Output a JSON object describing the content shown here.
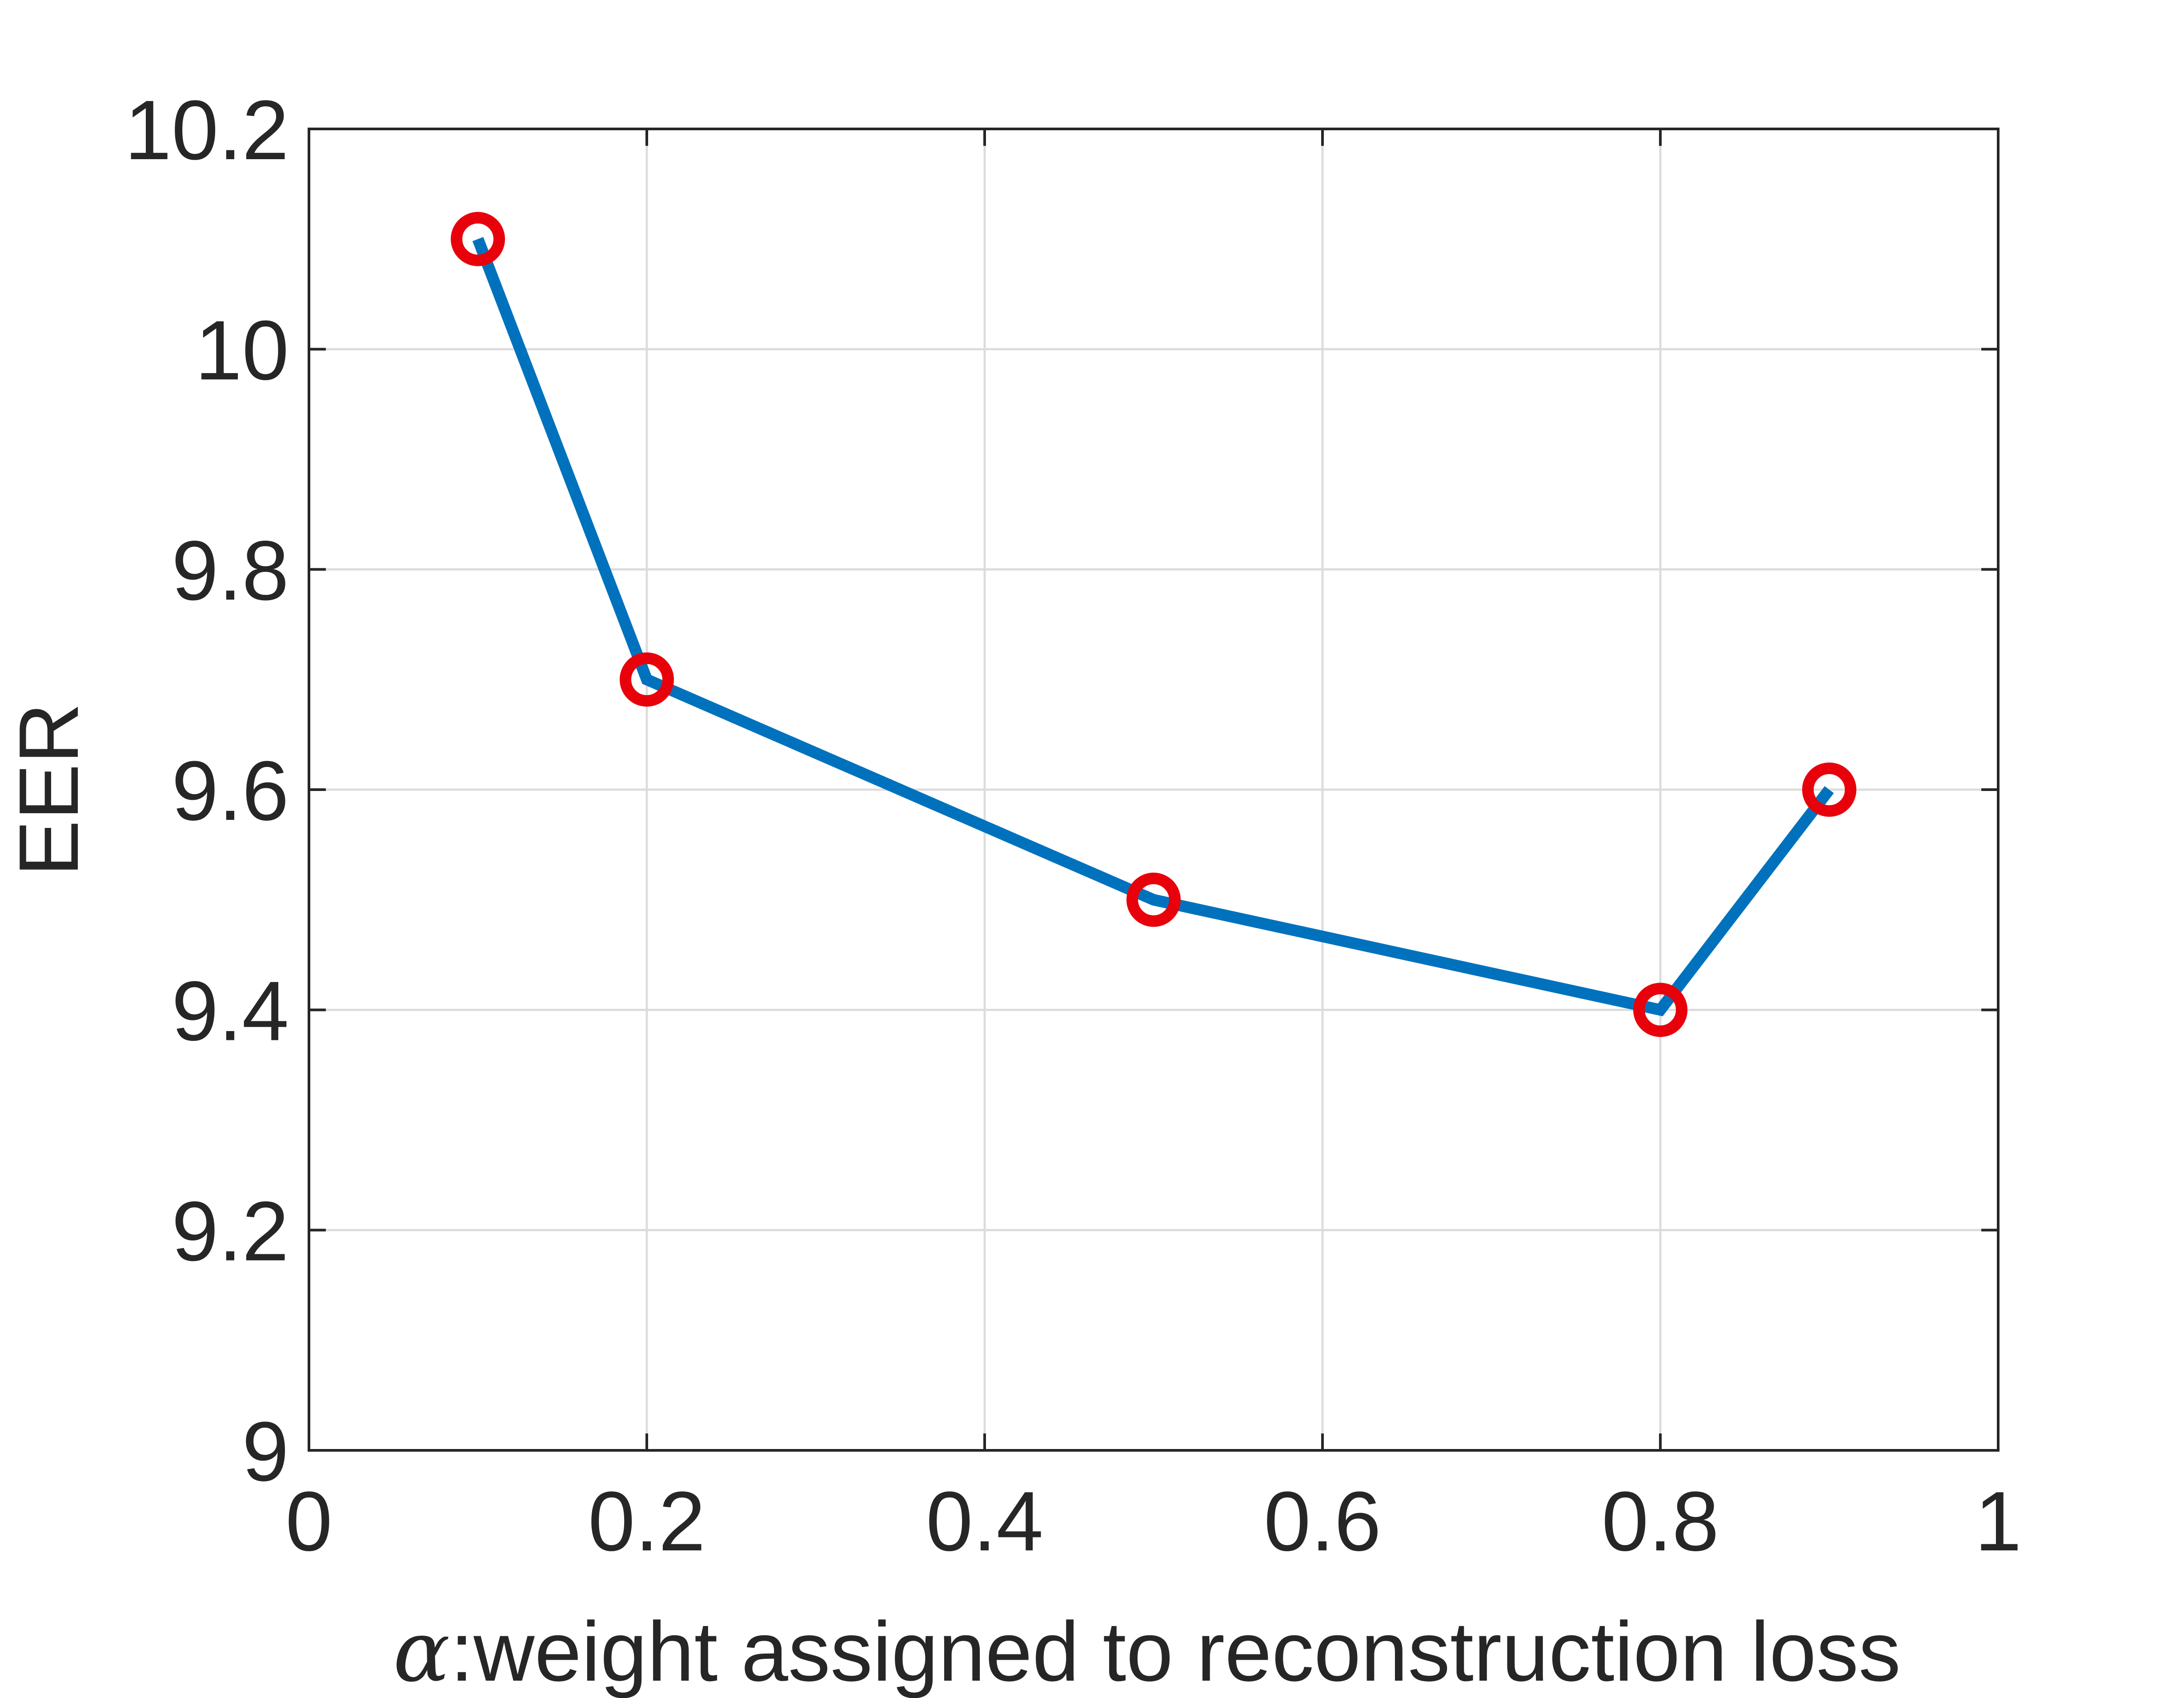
{
  "chart_data": {
    "type": "line",
    "title": "",
    "xlabel_symbol": "α",
    "xlabel_text": ":weight assigned to reconstruction loss",
    "ylabel": "EER",
    "xlim": [
      0,
      1
    ],
    "ylim": [
      9,
      10.2
    ],
    "x_ticks": [
      0,
      0.2,
      0.4,
      0.6,
      0.8,
      1
    ],
    "x_tick_labels": [
      "0",
      "0.2",
      "0.4",
      "0.6",
      "0.8",
      "1"
    ],
    "y_ticks": [
      9,
      9.2,
      9.4,
      9.6,
      9.8,
      10,
      10.2
    ],
    "y_tick_labels": [
      "9",
      "9.2",
      "9.4",
      "9.6",
      "9.8",
      "10",
      "10.2"
    ],
    "grid": true,
    "legend": "none",
    "series": [
      {
        "x": [
          0.1,
          0.2,
          0.5,
          0.8,
          0.9
        ],
        "y": [
          10.1,
          9.7,
          9.5,
          9.4,
          9.6
        ],
        "line_color": "#0072BD",
        "marker": "circle",
        "marker_color": "#E8000B"
      }
    ],
    "colors": {
      "grid": "#DCDCDC",
      "axes": "#262626"
    }
  }
}
